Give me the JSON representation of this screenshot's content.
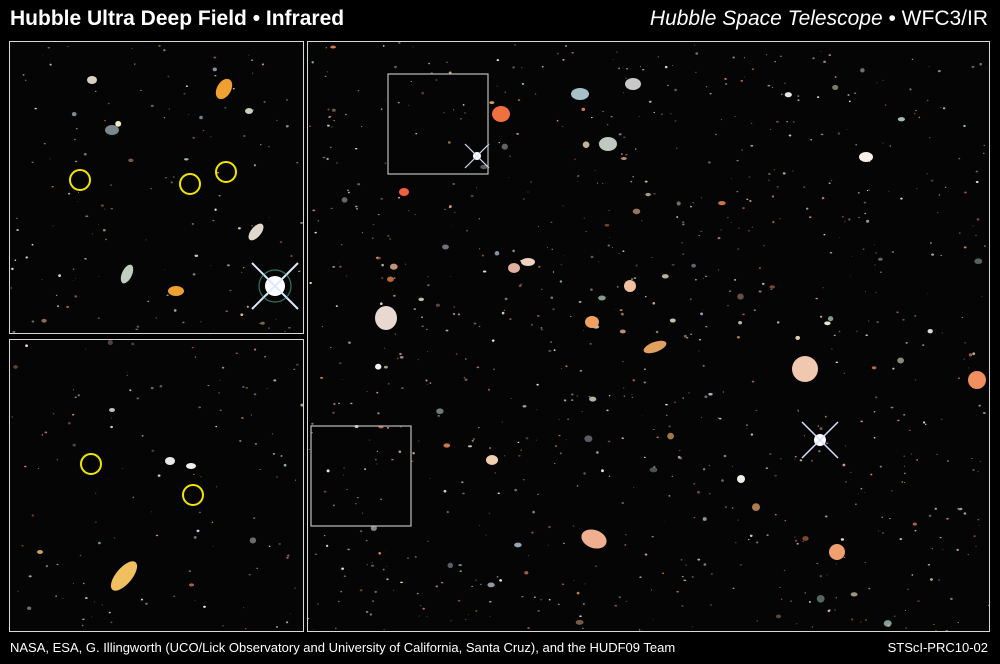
{
  "header": {
    "title": "Hubble Ultra Deep Field • Infrared",
    "telescope": "Hubble Space Telescope",
    "separator": " • ",
    "instrument": "WFC3/IR"
  },
  "footer": {
    "credit": "NASA, ESA, G. Illingworth (UCO/Lick Observatory and University of California, Santa Cruz), and the HUDF09 Team",
    "plate_id": "STScI-PRC10-02"
  },
  "colors": {
    "background": "#000000",
    "panel_border": "#d8d8d8",
    "marker_circle": "#f2e600",
    "zoom_box": "#bdbdbd"
  },
  "insets": [
    {
      "name": "inset-top",
      "candidate_circles": 3
    },
    {
      "name": "inset-bottom",
      "candidate_circles": 2
    }
  ],
  "main_field": {
    "zoom_regions": 2
  }
}
